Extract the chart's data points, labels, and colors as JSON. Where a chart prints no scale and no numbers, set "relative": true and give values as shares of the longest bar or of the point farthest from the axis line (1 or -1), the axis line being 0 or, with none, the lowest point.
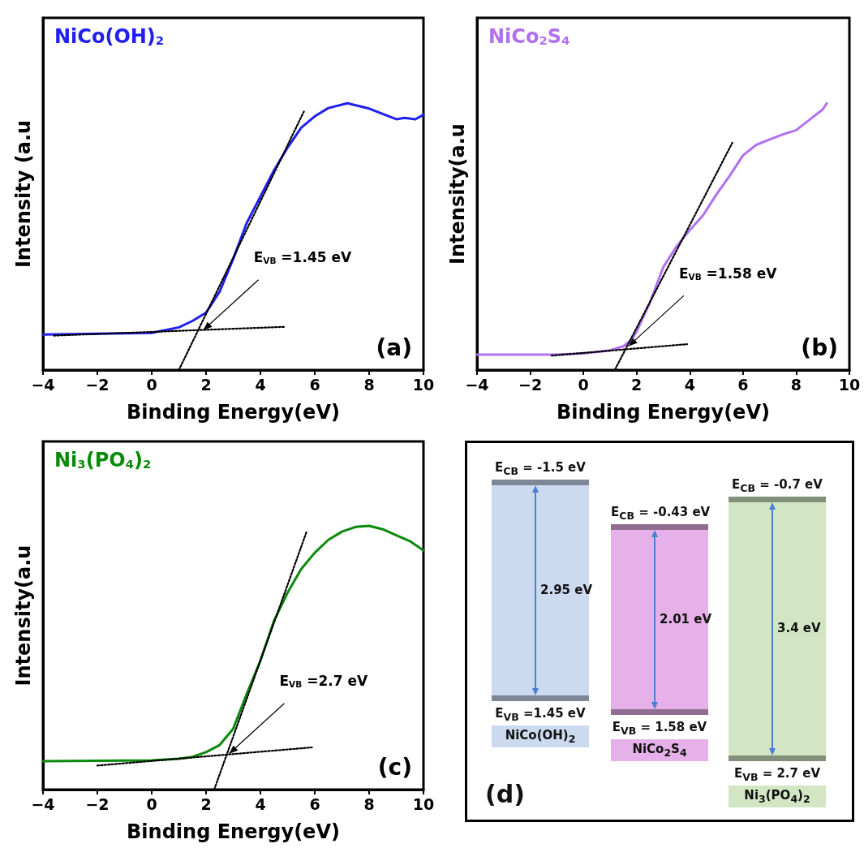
{
  "chart_data": [
    {
      "type": "line",
      "relative": true,
      "xlabel": "Binding Energy(eV)",
      "ylabel": "Intensity (a.u",
      "xlim": [
        -4,
        10
      ],
      "xticks": [
        -4,
        -2,
        0,
        2,
        4,
        6,
        8,
        10
      ],
      "tick_labels": "x",
      "legend": "top left",
      "annotations": [
        {
          "text": "E$_{VB}$ =1.45 eV",
          "x": 1.9,
          "y": 0.15
        },
        "(a)"
      ],
      "series": [
        {
          "name": "NiCo(OH)$_{2}$",
          "color": "#2020ee",
          "x": [
            -4,
            0,
            1,
            1.5,
            2,
            2.5,
            3,
            3.5,
            4,
            4.5,
            5,
            5.5,
            6,
            6.5,
            7.2,
            8,
            8.5,
            9,
            9.3,
            9.7,
            10
          ],
          "values": [
            0.133,
            0.139,
            0.16,
            0.184,
            0.215,
            0.294,
            0.417,
            0.552,
            0.65,
            0.748,
            0.834,
            0.908,
            0.951,
            0.982,
            1,
            0.98,
            0.96,
            0.94,
            0.945,
            0.94,
            0.957
          ]
        },
        {
          "type": "line",
          "color": "#000000",
          "line_style": "dotted",
          "x": [
            1.0,
            5.6
          ],
          "values": [
            0,
            0.969
          ]
        },
        {
          "type": "line",
          "color": "#000000",
          "line_style": "dotted",
          "x": [
            -3.6,
            4.9
          ],
          "values": [
            0.129,
            0.162
          ]
        }
      ]
    },
    {
      "type": "line",
      "relative": true,
      "xlabel": "Binding Energy(eV)",
      "ylabel": "Intensity(a.u",
      "xlim": [
        -4,
        10
      ],
      "xticks": [
        -4,
        -2,
        0,
        2,
        4,
        6,
        8,
        10
      ],
      "tick_labels": "x",
      "legend": "top left",
      "annotations": [
        {
          "text": "E$_{VB}$ =1.58 eV",
          "x": 1.7,
          "y": 0.09
        },
        "(b)"
      ],
      "series": [
        {
          "name": "NiCo$_{2}$S$_{4}$",
          "color": "#b070f0",
          "x": [
            -4,
            -1,
            0,
            1,
            1.5,
            1.8,
            2,
            2.5,
            3,
            3.5,
            4,
            4.5,
            5,
            5.5,
            6,
            6.5,
            7,
            7.5,
            8,
            8.5,
            9,
            9.15
          ],
          "values": [
            0.058,
            0.058,
            0.062,
            0.074,
            0.089,
            0.113,
            0.144,
            0.253,
            0.385,
            0.463,
            0.525,
            0.58,
            0.658,
            0.728,
            0.805,
            0.844,
            0.864,
            0.883,
            0.899,
            0.938,
            0.977,
            1
          ]
        },
        {
          "type": "line",
          "color": "#000000",
          "line_style": "dotted",
          "x": [
            1.2,
            5.6
          ],
          "values": [
            0.004,
            0.852
          ]
        },
        {
          "type": "line",
          "color": "#000000",
          "line_style": "dotted",
          "x": [
            -1.2,
            3.9
          ],
          "values": [
            0.054,
            0.097
          ]
        }
      ]
    },
    {
      "type": "line",
      "relative": true,
      "xlabel": "Binding Energy(eV)",
      "ylabel": "Intensity(a.u",
      "xlim": [
        -4,
        10
      ],
      "xticks": [
        -4,
        -2,
        0,
        2,
        4,
        6,
        8,
        10
      ],
      "tick_labels": "x",
      "legend": "top left",
      "annotations": [
        {
          "text": "E$_{VB}$ =2.7 eV",
          "x": 2.85,
          "y": 0.136
        },
        "(c)"
      ],
      "series": [
        {
          "name": "Ni$_{3}$(PO$_{4}$)$_{2}$",
          "color": "#0a8a0a",
          "x": [
            -4,
            0,
            1,
            1.5,
            2,
            2.5,
            3,
            3.5,
            4,
            4.5,
            5,
            5.5,
            6,
            6.5,
            7,
            7.5,
            8,
            8.5,
            9,
            9.5,
            10
          ],
          "values": [
            0.108,
            0.111,
            0.117,
            0.124,
            0.142,
            0.169,
            0.231,
            0.364,
            0.489,
            0.64,
            0.747,
            0.836,
            0.898,
            0.947,
            0.978,
            0.996,
            1,
            0.987,
            0.964,
            0.942,
            0.907
          ]
        },
        {
          "type": "line",
          "color": "#000000",
          "line_style": "dotted",
          "x": [
            2.3,
            5.7
          ],
          "values": [
            0,
            0.978
          ]
        },
        {
          "type": "line",
          "color": "#000000",
          "line_style": "dotted",
          "x": [
            -2,
            5.9
          ],
          "values": [
            0.091,
            0.16
          ]
        }
      ]
    },
    {
      "type": "other",
      "categories": [
        "NiCo(OH)$_{2}$",
        "NiCo$_{2}$S$_{4}$",
        "Ni$_{3}$(PO$_{4}$)$_{2}$"
      ],
      "colors": [
        "#ccdaf0",
        "#e6b1e8",
        "#d2e6c4"
      ],
      "annotations": [
        "E$_{CB}$ = -1.5 eV",
        "2.95 eV",
        "E$_{VB}$ =1.45 eV",
        "E$_{CB}$ = -0.43 eV",
        "2.01 eV",
        "E$_{VB}$ = 1.58 eV",
        "E$_{CB}$ = -0.7 eV",
        "3.4 eV",
        "E$_{VB}$ = 2.7 eV",
        "(d)"
      ]
    }
  ]
}
